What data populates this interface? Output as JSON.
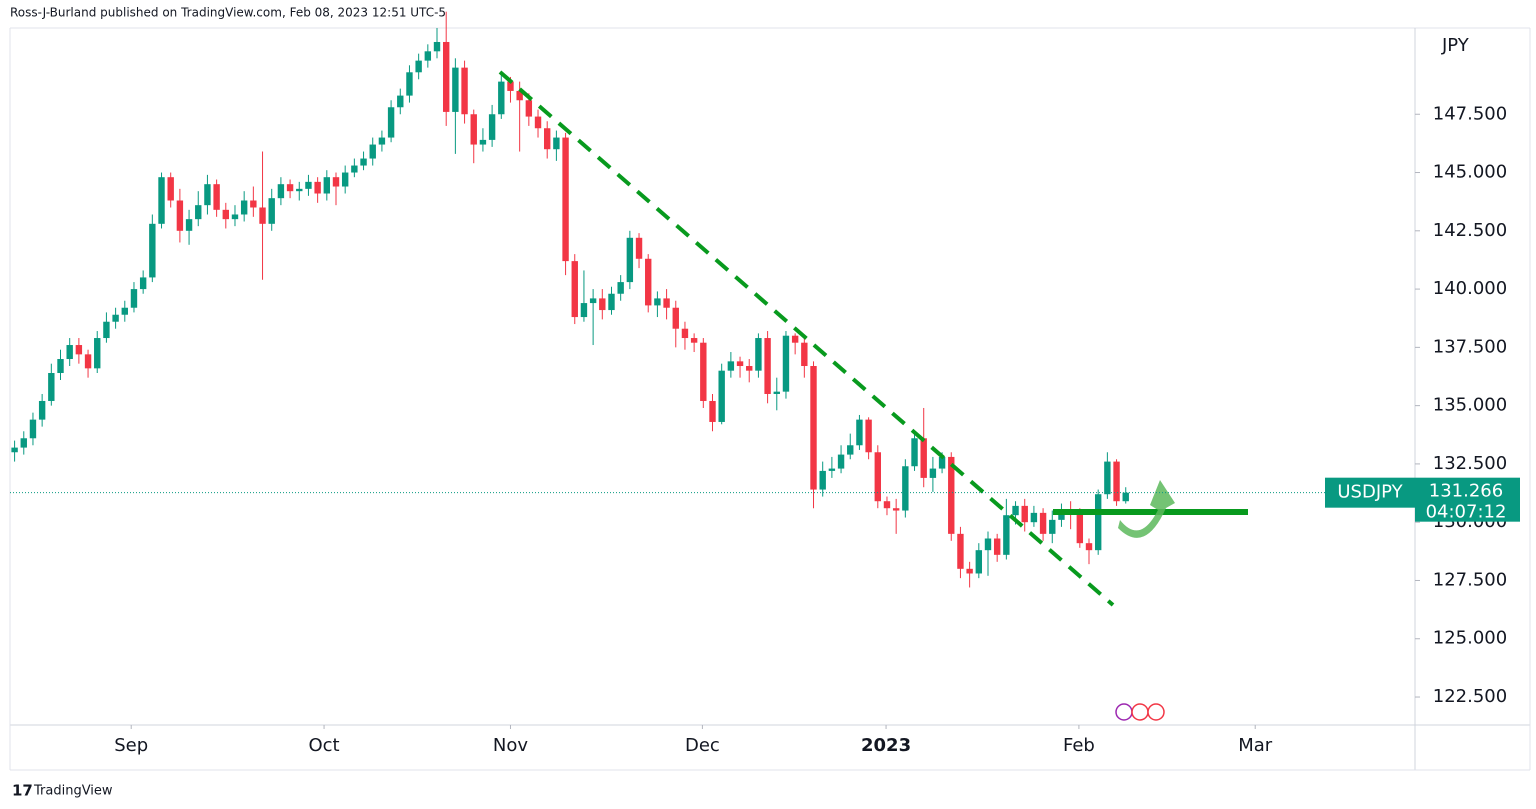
{
  "header": "Ross-J-Burland published on TradingView.com, Feb 08, 2023 12:51 UTC-5",
  "footer": "TradingView",
  "chart_data": {
    "type": "candlestick",
    "symbol": "USDJPY",
    "currency": "JPY",
    "countdown": "04:07:12",
    "up_color": "#089981",
    "down_color": "#f23645",
    "xlim": [
      -0.5,
      152.5
    ],
    "ylim": [
      121.3,
      151.2
    ],
    "xticks": [
      {
        "value": 12.7,
        "label": "Sep"
      },
      {
        "value": 33.7,
        "label": "Oct"
      },
      {
        "value": 54,
        "label": "Nov"
      },
      {
        "value": 74.9,
        "label": "Dec"
      },
      {
        "value": 94.9,
        "label": "2023"
      },
      {
        "value": 115.9,
        "label": "Feb"
      },
      {
        "value": 135.1,
        "label": "Mar"
      }
    ],
    "yticks": [
      {
        "value": 122.5,
        "label": "122.500"
      },
      {
        "value": 125,
        "label": "125.000"
      },
      {
        "value": 127.5,
        "label": "127.500"
      },
      {
        "value": 130,
        "label": "130.000"
      },
      {
        "value": 132.5,
        "label": "132.500"
      },
      {
        "value": 135,
        "label": "135.000"
      },
      {
        "value": 137.5,
        "label": "137.500"
      },
      {
        "value": 140,
        "label": "140.000"
      },
      {
        "value": 142.5,
        "label": "142.500"
      },
      {
        "value": 145,
        "label": "145.000"
      },
      {
        "value": 147.5,
        "label": "147.500"
      }
    ],
    "open": [
      133.0,
      133.2,
      133.6,
      134.4,
      135.2,
      136.4,
      137.0,
      137.6,
      137.2,
      136.6,
      137.9,
      138.6,
      138.9,
      139.2,
      140.0,
      140.5,
      142.8,
      144.8,
      143.8,
      142.5,
      143.0,
      143.6,
      144.5,
      143.4,
      143.0,
      143.2,
      143.8,
      143.5,
      142.8,
      143.9,
      144.5,
      144.2,
      144.3,
      144.6,
      144.1,
      144.8,
      144.4,
      145.0,
      145.3,
      145.6,
      146.2,
      146.5,
      147.8,
      148.3,
      149.3,
      149.8,
      150.2,
      150.6,
      147.6,
      149.5,
      147.5,
      146.2,
      146.4,
      147.5,
      148.9,
      148.5,
      148.1,
      147.4,
      146.9,
      146.0,
      146.5,
      141.2,
      138.8,
      139.4,
      139.6,
      139.1,
      139.8,
      140.3,
      142.2,
      141.3,
      139.3,
      139.6,
      139.2,
      138.3,
      137.9,
      137.7,
      135.2,
      134.3,
      136.5,
      136.9,
      136.7,
      136.5,
      137.9,
      135.5,
      135.6,
      138.0,
      137.7,
      136.7,
      131.4,
      132.2,
      132.3,
      132.9,
      133.3,
      134.4,
      133.0,
      130.9,
      130.6,
      130.5,
      132.4,
      133.6,
      131.9,
      132.3,
      132.8,
      129.5,
      128.0,
      127.8,
      128.8,
      129.3,
      128.6,
      130.3,
      130.7,
      130.0,
      130.4,
      129.5,
      130.1,
      130.5,
      130.4,
      129.1,
      128.8,
      131.2,
      132.6,
      130.9
    ],
    "high": [
      133.5,
      133.9,
      134.7,
      135.5,
      136.8,
      137.4,
      137.9,
      137.9,
      137.4,
      138.2,
      139.0,
      139.2,
      139.5,
      140.3,
      140.8,
      143.2,
      145.0,
      145.0,
      144.3,
      143.4,
      144.2,
      144.9,
      144.7,
      143.7,
      143.6,
      144.2,
      144.4,
      145.9,
      144.3,
      144.8,
      144.7,
      144.6,
      144.9,
      144.8,
      145.1,
      145.0,
      145.3,
      145.6,
      145.9,
      146.5,
      146.8,
      148.1,
      148.6,
      149.6,
      150.1,
      150.5,
      151.2,
      151.9,
      149.9,
      149.8,
      147.7,
      146.9,
      147.9,
      149.2,
      149.1,
      148.9,
      148.4,
      147.7,
      147.2,
      146.8,
      146.7,
      141.5,
      140.8,
      140.0,
      140.0,
      140.1,
      140.6,
      142.5,
      142.4,
      141.5,
      139.9,
      140.0,
      139.5,
      138.6,
      138.1,
      137.9,
      135.5,
      136.8,
      137.3,
      137.1,
      137.0,
      138.1,
      138.2,
      136.2,
      138.2,
      138.1,
      137.9,
      136.9,
      132.6,
      132.8,
      133.3,
      133.8,
      134.6,
      134.5,
      133.3,
      131.1,
      131.0,
      132.7,
      133.8,
      134.9,
      132.8,
      133.0,
      133.0,
      129.8,
      128.3,
      129.1,
      129.6,
      129.5,
      131.0,
      130.9,
      131.0,
      130.7,
      130.6,
      130.5,
      130.8,
      130.9,
      130.6,
      129.3,
      131.4,
      133.0,
      132.7,
      131.5
    ],
    "low": [
      132.6,
      132.9,
      133.3,
      134.1,
      135.0,
      136.1,
      136.7,
      136.8,
      136.2,
      136.4,
      137.7,
      138.3,
      138.6,
      139.0,
      139.8,
      140.3,
      142.6,
      143.5,
      142.0,
      141.9,
      142.7,
      143.2,
      143.1,
      142.6,
      142.7,
      142.9,
      143.1,
      140.4,
      142.5,
      143.6,
      143.9,
      143.8,
      144.0,
      143.7,
      143.8,
      143.6,
      144.1,
      144.8,
      145.1,
      145.3,
      145.9,
      146.3,
      147.5,
      148.0,
      149.0,
      149.5,
      149.9,
      147.0,
      145.8,
      147.1,
      145.4,
      145.9,
      146.1,
      147.3,
      148.0,
      145.9,
      147.0,
      146.5,
      145.6,
      145.5,
      140.6,
      138.5,
      138.6,
      137.6,
      138.7,
      138.9,
      139.5,
      140.0,
      140.9,
      139.0,
      138.8,
      138.7,
      137.5,
      137.4,
      137.3,
      134.9,
      133.9,
      134.2,
      136.2,
      136.2,
      136.0,
      136.2,
      135.1,
      134.8,
      135.3,
      137.2,
      136.2,
      130.6,
      131.1,
      131.9,
      132.1,
      132.7,
      133.1,
      132.7,
      130.6,
      130.3,
      129.5,
      130.2,
      132.2,
      131.5,
      131.3,
      132.1,
      129.2,
      127.6,
      127.2,
      127.6,
      127.7,
      128.3,
      128.4,
      129.9,
      129.6,
      129.8,
      129.2,
      129.1,
      129.8,
      129.7,
      128.9,
      128.2,
      128.6,
      131.0,
      130.7,
      130.8
    ],
    "close": [
      133.2,
      133.6,
      134.4,
      135.2,
      136.4,
      137.0,
      137.6,
      137.2,
      136.6,
      137.9,
      138.6,
      138.9,
      139.2,
      140.0,
      140.5,
      142.8,
      144.8,
      143.8,
      142.5,
      143.0,
      143.6,
      144.5,
      143.4,
      143.0,
      143.2,
      143.8,
      143.5,
      142.8,
      143.9,
      144.5,
      144.2,
      144.3,
      144.6,
      144.1,
      144.8,
      144.4,
      145.0,
      145.3,
      145.6,
      146.2,
      146.5,
      147.8,
      148.3,
      149.3,
      149.8,
      150.2,
      150.6,
      147.6,
      149.5,
      147.5,
      146.2,
      146.4,
      147.5,
      148.9,
      148.5,
      148.1,
      147.4,
      146.9,
      146.0,
      146.5,
      141.2,
      138.8,
      139.4,
      139.6,
      139.1,
      139.8,
      140.3,
      142.2,
      141.3,
      139.3,
      139.6,
      139.2,
      138.3,
      137.9,
      137.7,
      135.2,
      134.3,
      136.5,
      136.9,
      136.7,
      136.5,
      137.9,
      135.5,
      135.6,
      138.0,
      137.7,
      136.7,
      131.4,
      132.2,
      132.3,
      132.9,
      133.3,
      134.4,
      133.0,
      130.9,
      130.6,
      130.5,
      132.4,
      133.6,
      131.9,
      132.3,
      132.8,
      129.5,
      128.0,
      127.8,
      128.8,
      129.3,
      128.6,
      130.3,
      130.7,
      130.0,
      130.4,
      129.5,
      130.1,
      130.5,
      130.4,
      129.1,
      128.8,
      131.2,
      132.6,
      130.9,
      131.266
    ]
  }
}
